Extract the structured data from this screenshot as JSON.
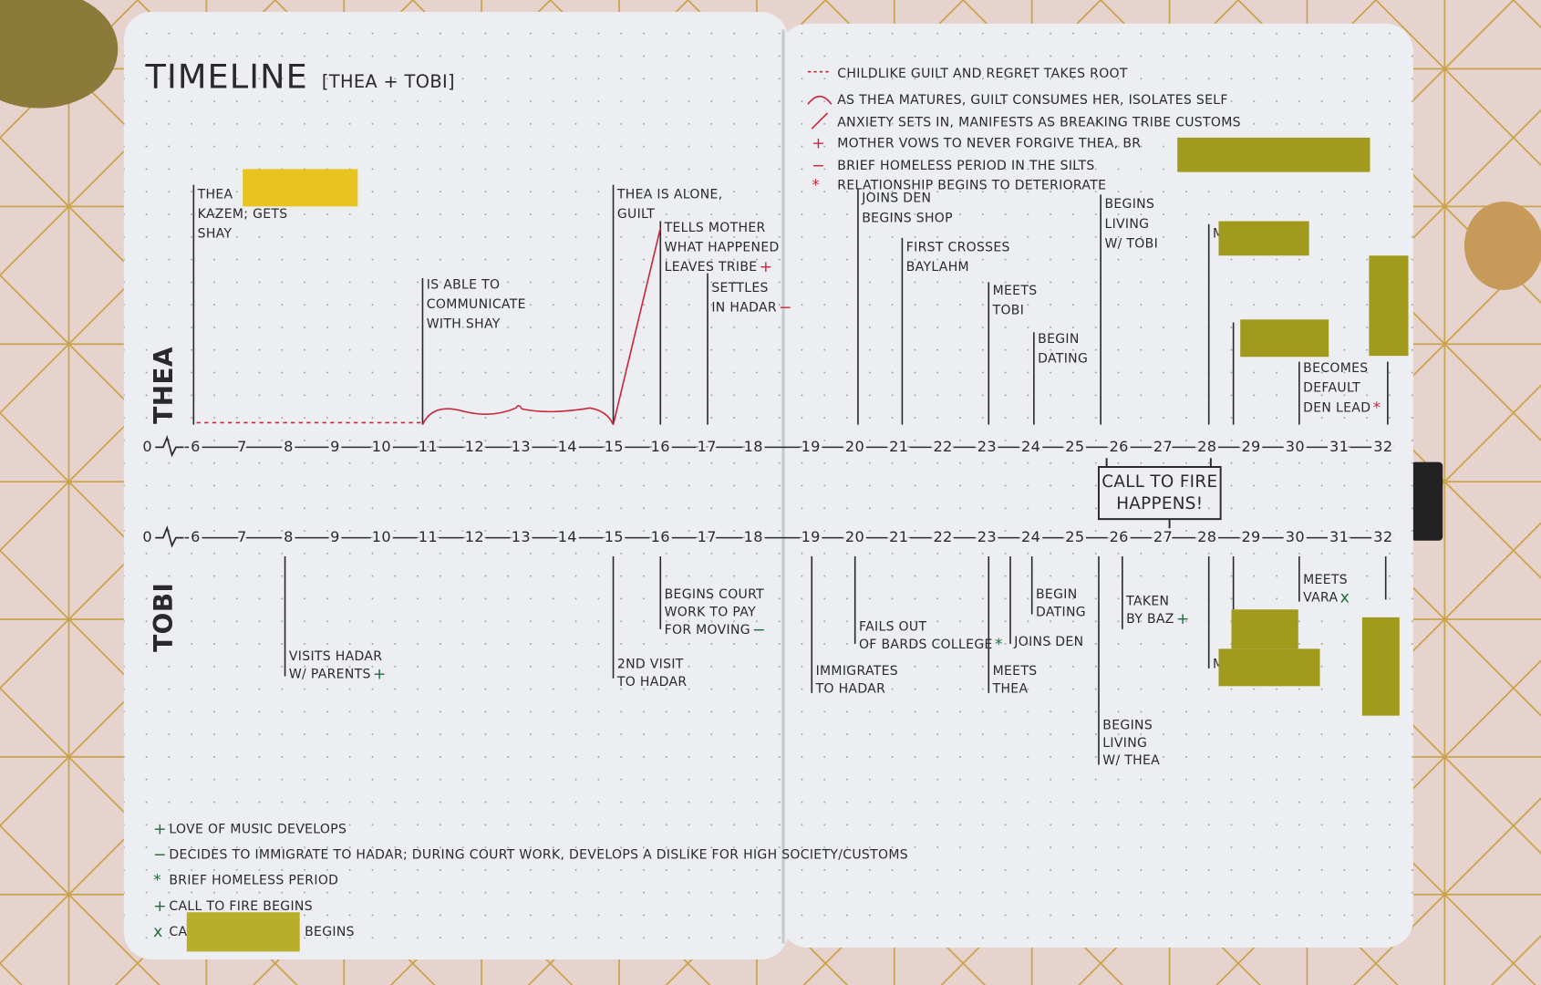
{
  "title": "TIMELINE",
  "subtitle": "[THEA + TOBI]",
  "legend_top": [
    {
      "text": "CHILDLIKE GUILT AND REGRET TAKES ROOT"
    },
    {
      "text": "AS THEA MATURES, GUILT CONSUMES HER, ISOLATES SELF"
    },
    {
      "text": "ANXIETY SETS IN, MANIFESTS AS BREAKING TRIBE CUSTOMS"
    },
    {
      "symbol": "+",
      "text": "MOTHER VOWS TO NEVER FORGIVE THEA, BR"
    },
    {
      "symbol": "−",
      "text": "BRIEF HOMELESS PERIOD IN THE SILTS"
    },
    {
      "symbol": "*",
      "text": "RELATIONSHIP BEGINS TO DETERIORATE"
    }
  ],
  "thea": {
    "label": "THEA",
    "axis": [
      0,
      6,
      7,
      8,
      9,
      10,
      11,
      12,
      13,
      14,
      15,
      16,
      17,
      18,
      19,
      20,
      21,
      22,
      23,
      24,
      25,
      26,
      27,
      28,
      29,
      30,
      31,
      32
    ],
    "events": [
      {
        "lines": [
          "THEA",
          "KAZEM; GETS",
          "SHAY"
        ]
      },
      {
        "lines": [
          "IS ABLE TO",
          "COMMUNICATE",
          "WITH SHAY"
        ]
      },
      {
        "lines": [
          "THEA IS ALONE,",
          "GUILT"
        ]
      },
      {
        "lines": [
          "TELLS MOTHER",
          "WHAT HAPPENED",
          "LEAVES TRIBE"
        ],
        "mark": "+"
      },
      {
        "lines": [
          "SETTLES",
          "IN HADAR"
        ],
        "mark": "−"
      },
      {
        "lines": [
          "JOINS DEN",
          "BEGINS SHOP"
        ]
      },
      {
        "lines": [
          "FIRST CROSSES",
          "BAYLAHM"
        ]
      },
      {
        "lines": [
          "MEETS",
          "TOBI"
        ]
      },
      {
        "lines": [
          "BEGIN",
          "DATING"
        ]
      },
      {
        "lines": [
          "BEGINS",
          "LIVING",
          "W/ TOBI"
        ]
      },
      {
        "lines": [
          "M"
        ]
      },
      {
        "lines": []
      },
      {
        "lines": [
          "BECOMES",
          "DEFAULT",
          "DEN LEAD"
        ],
        "mark": "*"
      },
      {
        "lines": []
      }
    ]
  },
  "call_to_fire": [
    "CALL TO FIRE",
    "HAPPENS!"
  ],
  "tobi": {
    "label": "TOBI",
    "axis": [
      0,
      6,
      7,
      8,
      9,
      10,
      11,
      12,
      13,
      14,
      15,
      16,
      17,
      18,
      19,
      20,
      21,
      22,
      23,
      24,
      25,
      26,
      27,
      28,
      29,
      30,
      31,
      32
    ],
    "events": [
      {
        "lines": [
          "VISITS HADAR",
          "W/ PARENTS"
        ],
        "mark": "+"
      },
      {
        "lines": [
          "2ND VISIT",
          "TO HADAR"
        ]
      },
      {
        "lines": [
          "BEGINS COURT",
          "WORK TO PAY",
          "FOR MOVING"
        ],
        "mark": "−"
      },
      {
        "lines": [
          "IMMIGRATES",
          "TO HADAR"
        ]
      },
      {
        "lines": [
          "FAILS OUT",
          "OF BARDS COLLEGE"
        ],
        "mark": "*"
      },
      {
        "lines": [
          "MEETS",
          "THEA"
        ]
      },
      {
        "lines": [
          "JOINS DEN"
        ]
      },
      {
        "lines": [
          "BEGIN",
          "DATING"
        ]
      },
      {
        "lines": [
          "BEGINS",
          "LIVING",
          "W/ THEA"
        ]
      },
      {
        "lines": [
          "TAKEN",
          "BY BAZ"
        ],
        "mark": "+"
      },
      {
        "lines": [
          "M"
        ]
      },
      {
        "lines": []
      },
      {
        "lines": [
          "MEETS",
          "VARA"
        ],
        "mark": "x"
      },
      {
        "lines": []
      }
    ]
  },
  "legend_bottom": [
    {
      "symbol": "+",
      "text": "LOVE OF MUSIC DEVELOPS"
    },
    {
      "symbol": "−",
      "text": "DECIDES TO IMMIGRATE TO HADAR; DURING COURT WORK, DEVELOPS A DISLIKE FOR HIGH SOCIETY/CUSTOMS"
    },
    {
      "symbol": "*",
      "text": "BRIEF HOMELESS PERIOD"
    },
    {
      "symbol": "+",
      "text": "CALL TO FIRE BEGINS"
    },
    {
      "symbol": "x",
      "text": "CA",
      "text_after": "BEGINS"
    }
  ]
}
